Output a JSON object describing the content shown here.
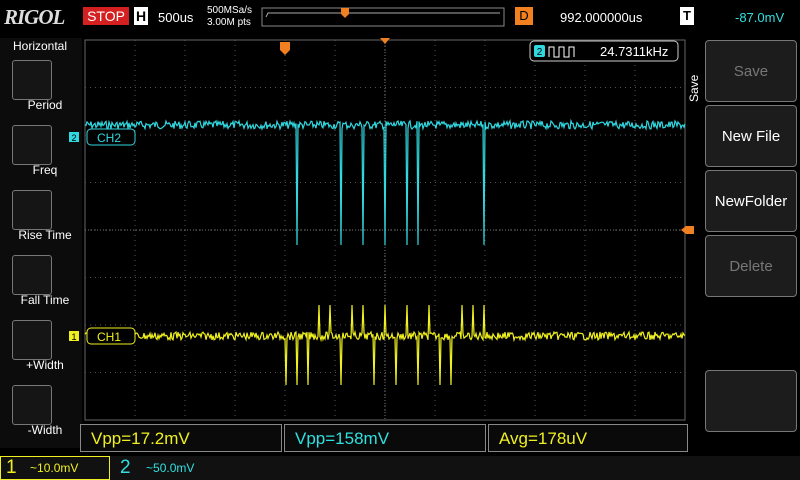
{
  "header": {
    "logo": "RIGOL",
    "status": "STOP",
    "timebase_label": "H",
    "timebase": "500us",
    "sample_rate": "500MSa/s",
    "memory_depth": "3.00M pts",
    "delay_label": "D",
    "delay": "992.000000us",
    "trigger_label": "T",
    "trigger_level": "-87.0mV"
  },
  "left_menu": {
    "title": "Horizontal",
    "items": [
      "Period",
      "Freq",
      "Rise Time",
      "Fall Time",
      "+Width",
      "-Width"
    ]
  },
  "right_menu": {
    "title": "Save",
    "items": [
      "Save",
      "New File",
      "NewFolder",
      "Delete"
    ]
  },
  "channels": [
    {
      "number": "1",
      "label": "CH1",
      "scale": "10.0mV"
    },
    {
      "number": "2",
      "label": "CH2",
      "scale": "50.0mV"
    }
  ],
  "frequency": {
    "channel": "2",
    "value": "24.7311kHz"
  },
  "measurements": [
    "Vpp=17.2mV",
    "Vpp=158mV",
    "Avg=178uV"
  ]
}
